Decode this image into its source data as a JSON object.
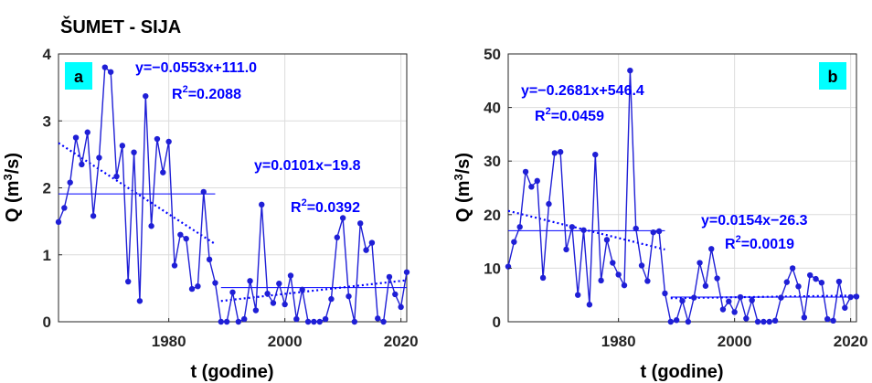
{
  "figure": {
    "title": "ŠUMET - SIJA"
  },
  "colors": {
    "series": "#1f1fd6",
    "trend": "#0000ff",
    "grid": "#dcdcdc",
    "label_bg": "#00ffff"
  },
  "chart_data": [
    {
      "type": "line",
      "panel_label": "a",
      "xlabel": "t (godine)",
      "ylabel": "Q (m³/s)",
      "xlim": [
        1961,
        2021
      ],
      "ylim": [
        0,
        4
      ],
      "xticks": [
        1980,
        2000,
        2020
      ],
      "yticks": [
        0,
        1,
        2,
        3,
        4
      ],
      "grid": true,
      "x": [
        1961,
        1962,
        1963,
        1964,
        1965,
        1966,
        1967,
        1968,
        1969,
        1970,
        1971,
        1972,
        1973,
        1974,
        1975,
        1976,
        1977,
        1978,
        1979,
        1980,
        1981,
        1982,
        1983,
        1984,
        1985,
        1986,
        1987,
        1988,
        1989,
        1990,
        1991,
        1992,
        1993,
        1994,
        1995,
        1996,
        1997,
        1998,
        1999,
        2000,
        2001,
        2002,
        2003,
        2004,
        2005,
        2006,
        2007,
        2008,
        2009,
        2010,
        2011,
        2012,
        2013,
        2014,
        2015,
        2016,
        2017,
        2018,
        2019,
        2020,
        2021
      ],
      "y": [
        1.49,
        1.7,
        2.08,
        2.75,
        2.35,
        2.83,
        1.58,
        2.45,
        3.8,
        3.73,
        2.17,
        2.63,
        0.6,
        2.53,
        0.31,
        3.37,
        1.43,
        2.73,
        2.23,
        2.69,
        0.84,
        1.3,
        1.24,
        0.49,
        0.53,
        1.94,
        0.93,
        0.58,
        0.0,
        0.0,
        0.44,
        0.0,
        0.04,
        0.61,
        0.17,
        1.75,
        0.42,
        0.28,
        0.57,
        0.26,
        0.69,
        0.04,
        0.48,
        0.0,
        0.0,
        0.0,
        0.04,
        0.34,
        1.26,
        1.55,
        0.38,
        0.0,
        1.47,
        1.07,
        1.18,
        0.05,
        0.0,
        0.67,
        0.41,
        0.22,
        0.74
      ],
      "annotations": [
        {
          "equation": "y=−0.0553x+111.0",
          "r2": "=0.2088"
        },
        {
          "equation": "y=0.0101x−19.8",
          "r2": "=0.0392"
        }
      ],
      "trend_lines": [
        {
          "x": [
            1961,
            1988
          ],
          "y": [
            2.67,
            1.16
          ],
          "style": "dotted"
        },
        {
          "x": [
            1989,
            2021
          ],
          "y": [
            0.31,
            0.62
          ],
          "style": "dotted"
        }
      ],
      "mean_lines": [
        {
          "x": [
            1961,
            1988
          ],
          "y": 1.91
        },
        {
          "x": [
            1989,
            2021
          ],
          "y": 0.51
        }
      ]
    },
    {
      "type": "line",
      "panel_label": "b",
      "xlabel": "t (godine)",
      "ylabel": "Q (m³/s)",
      "xlim": [
        1961,
        2021
      ],
      "ylim": [
        0,
        50
      ],
      "xticks": [
        1980,
        2000,
        2020
      ],
      "yticks": [
        0,
        10,
        20,
        30,
        40,
        50
      ],
      "grid": true,
      "x": [
        1961,
        1962,
        1963,
        1964,
        1965,
        1966,
        1967,
        1968,
        1969,
        1970,
        1971,
        1972,
        1973,
        1974,
        1975,
        1976,
        1977,
        1978,
        1979,
        1980,
        1981,
        1982,
        1983,
        1984,
        1985,
        1986,
        1987,
        1988,
        1989,
        1990,
        1991,
        1992,
        1993,
        1994,
        1995,
        1996,
        1997,
        1998,
        1999,
        2000,
        2001,
        2002,
        2003,
        2004,
        2005,
        2006,
        2007,
        2008,
        2009,
        2010,
        2011,
        2012,
        2013,
        2014,
        2015,
        2016,
        2017,
        2018,
        2019,
        2020,
        2021
      ],
      "y": [
        10.3,
        14.9,
        17.7,
        28.0,
        25.2,
        26.3,
        8.2,
        22.0,
        31.5,
        31.7,
        13.5,
        17.7,
        5.0,
        17.1,
        3.2,
        31.2,
        7.7,
        15.3,
        11.0,
        8.8,
        6.8,
        46.9,
        17.4,
        10.5,
        7.6,
        16.7,
        16.9,
        5.3,
        0.0,
        0.3,
        3.9,
        0.0,
        4.5,
        11.0,
        6.7,
        13.6,
        8.1,
        2.3,
        3.8,
        1.8,
        4.6,
        0.6,
        4.0,
        0.0,
        0.0,
        0.0,
        0.2,
        4.5,
        7.4,
        10.0,
        6.6,
        0.8,
        8.7,
        8.0,
        7.3,
        0.5,
        0.2,
        7.5,
        2.6,
        4.6,
        4.7
      ],
      "annotations": [
        {
          "equation": "y=−0.2681x+546.4",
          "r2": "=0.0459"
        },
        {
          "equation": "y=0.0154x−26.3",
          "r2": "=0.0019"
        }
      ],
      "trend_lines": [
        {
          "x": [
            1961,
            1988
          ],
          "y": [
            20.7,
            13.5
          ],
          "style": "dotted"
        },
        {
          "x": [
            1989,
            2021
          ],
          "y": [
            4.4,
            4.9
          ],
          "style": "dotted"
        }
      ],
      "mean_lines": [
        {
          "x": [
            1961,
            1988
          ],
          "y": 17.0
        },
        {
          "x": [
            1989,
            2021
          ],
          "y": 4.6
        }
      ]
    }
  ]
}
